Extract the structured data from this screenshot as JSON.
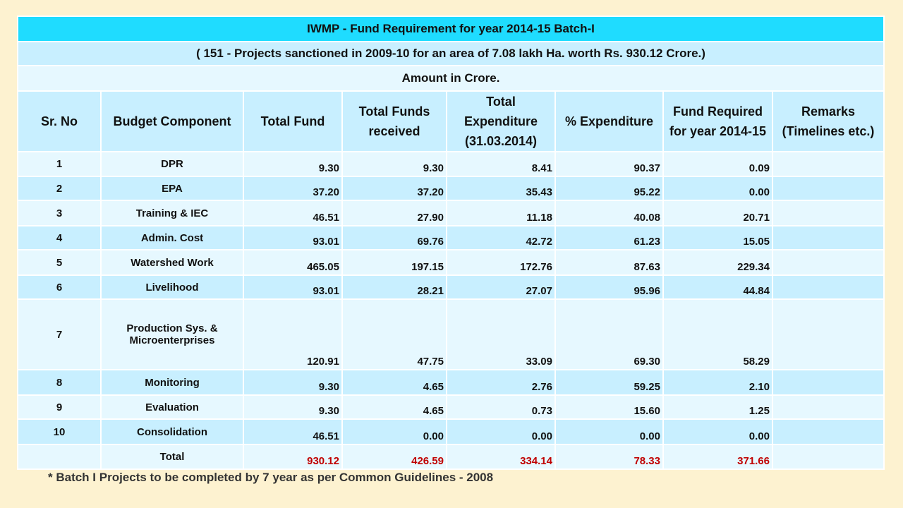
{
  "table": {
    "title": "IWMP - Fund Requirement for year 2014-15 Batch-I",
    "subtitle": "( 151 - Projects sanctioned in 2009-10 for an area of 7.08 lakh Ha. worth Rs. 930.12 Crore.)",
    "unit_note": "Amount in Crore.",
    "headers": [
      "Sr. No",
      "Budget Component",
      "Total Fund",
      "Total Funds received",
      "Total Expenditure (31.03.2014)",
      "% Expenditure",
      "Fund Required for year 2014-15",
      "Remarks (Timelines etc.)"
    ],
    "rows": [
      {
        "sr": "1",
        "component": "DPR",
        "total_fund": "9.30",
        "received": "9.30",
        "expenditure": "8.41",
        "pct": "90.37",
        "required": "0.09",
        "remarks": ""
      },
      {
        "sr": "2",
        "component": "EPA",
        "total_fund": "37.20",
        "received": "37.20",
        "expenditure": "35.43",
        "pct": "95.22",
        "required": "0.00",
        "remarks": ""
      },
      {
        "sr": "3",
        "component": "Training & IEC",
        "total_fund": "46.51",
        "received": "27.90",
        "expenditure": "11.18",
        "pct": "40.08",
        "required": "20.71",
        "remarks": ""
      },
      {
        "sr": "4",
        "component": "Admin. Cost",
        "total_fund": "93.01",
        "received": "69.76",
        "expenditure": "42.72",
        "pct": "61.23",
        "required": "15.05",
        "remarks": ""
      },
      {
        "sr": "5",
        "component": "Watershed Work",
        "total_fund": "465.05",
        "received": "197.15",
        "expenditure": "172.76",
        "pct": "87.63",
        "required": "229.34",
        "remarks": ""
      },
      {
        "sr": "6",
        "component": "Livelihood",
        "total_fund": "93.01",
        "received": "28.21",
        "expenditure": "27.07",
        "pct": "95.96",
        "required": "44.84",
        "remarks": ""
      },
      {
        "sr": "7",
        "component": "Production Sys. & Microenterprises",
        "total_fund": "120.91",
        "received": "47.75",
        "expenditure": "33.09",
        "pct": "69.30",
        "required": "58.29",
        "remarks": ""
      },
      {
        "sr": "8",
        "component": "Monitoring",
        "total_fund": "9.30",
        "received": "4.65",
        "expenditure": "2.76",
        "pct": "59.25",
        "required": "2.10",
        "remarks": ""
      },
      {
        "sr": "9",
        "component": "Evaluation",
        "total_fund": "9.30",
        "received": "4.65",
        "expenditure": "0.73",
        "pct": "15.60",
        "required": "1.25",
        "remarks": ""
      },
      {
        "sr": "10",
        "component": "Consolidation",
        "total_fund": "46.51",
        "received": "0.00",
        "expenditure": "0.00",
        "pct": "0.00",
        "required": "0.00",
        "remarks": ""
      }
    ],
    "total": {
      "sr": "",
      "component": "Total",
      "total_fund": "930.12",
      "received": "426.59",
      "expenditure": "334.14",
      "pct": "78.33",
      "required": "371.66",
      "remarks": ""
    }
  },
  "footnote": "* Batch I Projects to be completed by 7 year as per Common Guidelines - 2008"
}
